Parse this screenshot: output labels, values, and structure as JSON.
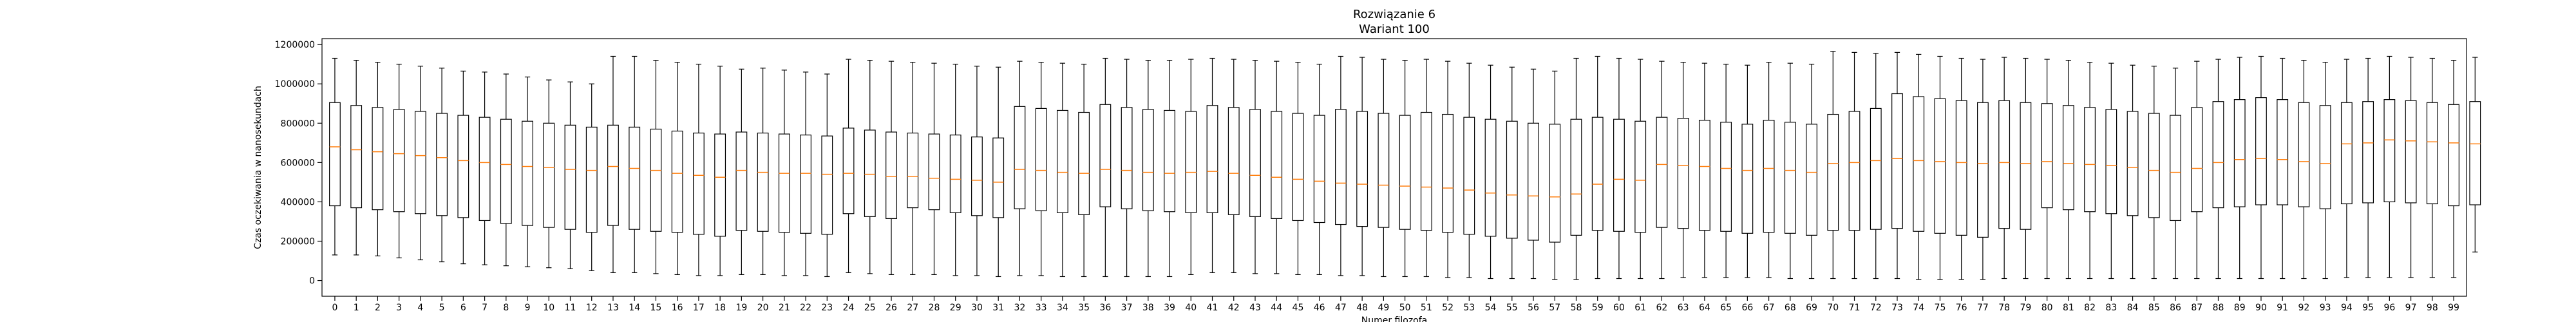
{
  "chart_data": {
    "type": "boxplot",
    "title": "Rozwiązanie 6",
    "subtitle": "Wariant 100",
    "xlabel": "Numer filozofa",
    "ylabel": "Czas oczekiwania w nanosekundach",
    "ylim": [
      -80000,
      1230000
    ],
    "yticks": [
      0,
      200000,
      400000,
      600000,
      800000,
      1000000,
      1200000
    ],
    "ytick_labels": [
      "0",
      "200000",
      "400000",
      "600000",
      "800000",
      "1000000",
      "1200000"
    ],
    "grid": false,
    "median_color": "#ff7f0e",
    "box_color": "#000000",
    "categories": [
      "0",
      "1",
      "2",
      "3",
      "4",
      "5",
      "6",
      "7",
      "8",
      "9",
      "10",
      "11",
      "12",
      "13",
      "14",
      "15",
      "16",
      "17",
      "18",
      "19",
      "20",
      "21",
      "22",
      "23",
      "24",
      "25",
      "26",
      "27",
      "28",
      "29",
      "30",
      "31",
      "32",
      "33",
      "34",
      "35",
      "36",
      "37",
      "38",
      "39",
      "40",
      "41",
      "42",
      "43",
      "44",
      "45",
      "46",
      "47",
      "48",
      "49",
      "50",
      "51",
      "52",
      "53",
      "54",
      "55",
      "56",
      "57",
      "58",
      "59",
      "60",
      "61",
      "62",
      "63",
      "64",
      "65",
      "66",
      "67",
      "68",
      "69",
      "70",
      "71",
      "72",
      "73",
      "74",
      "75",
      "76",
      "77",
      "78",
      "79",
      "80",
      "81",
      "82",
      "83",
      "84",
      "85",
      "86",
      "87",
      "88",
      "89",
      "90",
      "91",
      "92",
      "93",
      "94",
      "95",
      "96",
      "97",
      "98",
      "99"
    ],
    "boxes": [
      {
        "whislo": 130000,
        "q1": 380000,
        "med": 680000,
        "q3": 905000,
        "whishi": 1130000
      },
      {
        "whislo": 130000,
        "q1": 370000,
        "med": 665000,
        "q3": 890000,
        "whishi": 1120000
      },
      {
        "whislo": 125000,
        "q1": 360000,
        "med": 655000,
        "q3": 880000,
        "whishi": 1110000
      },
      {
        "whislo": 115000,
        "q1": 350000,
        "med": 645000,
        "q3": 870000,
        "whishi": 1100000
      },
      {
        "whislo": 105000,
        "q1": 340000,
        "med": 635000,
        "q3": 860000,
        "whishi": 1090000
      },
      {
        "whislo": 95000,
        "q1": 330000,
        "med": 625000,
        "q3": 850000,
        "whishi": 1080000
      },
      {
        "whislo": 85000,
        "q1": 320000,
        "med": 610000,
        "q3": 840000,
        "whishi": 1065000
      },
      {
        "whislo": 80000,
        "q1": 305000,
        "med": 600000,
        "q3": 830000,
        "whishi": 1060000
      },
      {
        "whislo": 75000,
        "q1": 290000,
        "med": 590000,
        "q3": 820000,
        "whishi": 1050000
      },
      {
        "whislo": 70000,
        "q1": 280000,
        "med": 580000,
        "q3": 810000,
        "whishi": 1035000
      },
      {
        "whislo": 65000,
        "q1": 270000,
        "med": 575000,
        "q3": 800000,
        "whishi": 1020000
      },
      {
        "whislo": 60000,
        "q1": 260000,
        "med": 565000,
        "q3": 790000,
        "whishi": 1010000
      },
      {
        "whislo": 50000,
        "q1": 245000,
        "med": 560000,
        "q3": 780000,
        "whishi": 1000000
      },
      {
        "whislo": 40000,
        "q1": 280000,
        "med": 580000,
        "q3": 790000,
        "whishi": 1140000
      },
      {
        "whislo": 40000,
        "q1": 260000,
        "med": 570000,
        "q3": 780000,
        "whishi": 1140000
      },
      {
        "whislo": 35000,
        "q1": 250000,
        "med": 560000,
        "q3": 770000,
        "whishi": 1120000
      },
      {
        "whislo": 30000,
        "q1": 245000,
        "med": 545000,
        "q3": 760000,
        "whishi": 1110000
      },
      {
        "whislo": 25000,
        "q1": 235000,
        "med": 535000,
        "q3": 750000,
        "whishi": 1100000
      },
      {
        "whislo": 25000,
        "q1": 225000,
        "med": 525000,
        "q3": 745000,
        "whishi": 1090000
      },
      {
        "whislo": 30000,
        "q1": 255000,
        "med": 560000,
        "q3": 755000,
        "whishi": 1075000
      },
      {
        "whislo": 30000,
        "q1": 250000,
        "med": 550000,
        "q3": 750000,
        "whishi": 1080000
      },
      {
        "whislo": 25000,
        "q1": 245000,
        "med": 545000,
        "q3": 745000,
        "whishi": 1070000
      },
      {
        "whislo": 25000,
        "q1": 240000,
        "med": 545000,
        "q3": 740000,
        "whishi": 1060000
      },
      {
        "whislo": 20000,
        "q1": 235000,
        "med": 540000,
        "q3": 735000,
        "whishi": 1050000
      },
      {
        "whislo": 40000,
        "q1": 340000,
        "med": 545000,
        "q3": 775000,
        "whishi": 1125000
      },
      {
        "whislo": 35000,
        "q1": 325000,
        "med": 540000,
        "q3": 765000,
        "whishi": 1120000
      },
      {
        "whislo": 30000,
        "q1": 315000,
        "med": 530000,
        "q3": 755000,
        "whishi": 1115000
      },
      {
        "whislo": 30000,
        "q1": 370000,
        "med": 530000,
        "q3": 750000,
        "whishi": 1110000
      },
      {
        "whislo": 30000,
        "q1": 360000,
        "med": 520000,
        "q3": 745000,
        "whishi": 1105000
      },
      {
        "whislo": 25000,
        "q1": 345000,
        "med": 515000,
        "q3": 740000,
        "whishi": 1100000
      },
      {
        "whislo": 25000,
        "q1": 330000,
        "med": 510000,
        "q3": 730000,
        "whishi": 1090000
      },
      {
        "whislo": 20000,
        "q1": 320000,
        "med": 500000,
        "q3": 725000,
        "whishi": 1085000
      },
      {
        "whislo": 25000,
        "q1": 365000,
        "med": 565000,
        "q3": 885000,
        "whishi": 1115000
      },
      {
        "whislo": 25000,
        "q1": 355000,
        "med": 560000,
        "q3": 875000,
        "whishi": 1110000
      },
      {
        "whislo": 20000,
        "q1": 345000,
        "med": 550000,
        "q3": 865000,
        "whishi": 1105000
      },
      {
        "whislo": 20000,
        "q1": 335000,
        "med": 545000,
        "q3": 855000,
        "whishi": 1100000
      },
      {
        "whislo": 20000,
        "q1": 375000,
        "med": 565000,
        "q3": 895000,
        "whishi": 1130000
      },
      {
        "whislo": 20000,
        "q1": 365000,
        "med": 560000,
        "q3": 880000,
        "whishi": 1125000
      },
      {
        "whislo": 20000,
        "q1": 355000,
        "med": 550000,
        "q3": 870000,
        "whishi": 1120000
      },
      {
        "whislo": 20000,
        "q1": 350000,
        "med": 545000,
        "q3": 865000,
        "whishi": 1120000
      },
      {
        "whislo": 30000,
        "q1": 345000,
        "med": 550000,
        "q3": 860000,
        "whishi": 1125000
      },
      {
        "whislo": 40000,
        "q1": 345000,
        "med": 555000,
        "q3": 890000,
        "whishi": 1130000
      },
      {
        "whislo": 40000,
        "q1": 335000,
        "med": 545000,
        "q3": 880000,
        "whishi": 1125000
      },
      {
        "whislo": 35000,
        "q1": 325000,
        "med": 535000,
        "q3": 870000,
        "whishi": 1120000
      },
      {
        "whislo": 35000,
        "q1": 315000,
        "med": 525000,
        "q3": 860000,
        "whishi": 1115000
      },
      {
        "whislo": 30000,
        "q1": 305000,
        "med": 515000,
        "q3": 850000,
        "whishi": 1110000
      },
      {
        "whislo": 30000,
        "q1": 295000,
        "med": 505000,
        "q3": 840000,
        "whishi": 1100000
      },
      {
        "whislo": 25000,
        "q1": 285000,
        "med": 495000,
        "q3": 870000,
        "whishi": 1140000
      },
      {
        "whislo": 25000,
        "q1": 275000,
        "med": 490000,
        "q3": 860000,
        "whishi": 1135000
      },
      {
        "whislo": 20000,
        "q1": 270000,
        "med": 485000,
        "q3": 850000,
        "whishi": 1125000
      },
      {
        "whislo": 20000,
        "q1": 260000,
        "med": 480000,
        "q3": 840000,
        "whishi": 1120000
      },
      {
        "whislo": 20000,
        "q1": 255000,
        "med": 475000,
        "q3": 855000,
        "whishi": 1125000
      },
      {
        "whislo": 15000,
        "q1": 245000,
        "med": 470000,
        "q3": 845000,
        "whishi": 1115000
      },
      {
        "whislo": 15000,
        "q1": 235000,
        "med": 460000,
        "q3": 830000,
        "whishi": 1105000
      },
      {
        "whislo": 10000,
        "q1": 225000,
        "med": 445000,
        "q3": 820000,
        "whishi": 1095000
      },
      {
        "whislo": 10000,
        "q1": 215000,
        "med": 435000,
        "q3": 810000,
        "whishi": 1085000
      },
      {
        "whislo": 10000,
        "q1": 205000,
        "med": 430000,
        "q3": 800000,
        "whishi": 1075000
      },
      {
        "whislo": 5000,
        "q1": 195000,
        "med": 425000,
        "q3": 795000,
        "whishi": 1065000
      },
      {
        "whislo": 5000,
        "q1": 230000,
        "med": 440000,
        "q3": 820000,
        "whishi": 1130000
      },
      {
        "whislo": 10000,
        "q1": 255000,
        "med": 490000,
        "q3": 830000,
        "whishi": 1140000
      },
      {
        "whislo": 10000,
        "q1": 250000,
        "med": 515000,
        "q3": 820000,
        "whishi": 1130000
      },
      {
        "whislo": 10000,
        "q1": 245000,
        "med": 510000,
        "q3": 810000,
        "whishi": 1125000
      },
      {
        "whislo": 10000,
        "q1": 270000,
        "med": 590000,
        "q3": 830000,
        "whishi": 1115000
      },
      {
        "whislo": 15000,
        "q1": 265000,
        "med": 585000,
        "q3": 825000,
        "whishi": 1110000
      },
      {
        "whislo": 15000,
        "q1": 255000,
        "med": 580000,
        "q3": 815000,
        "whishi": 1105000
      },
      {
        "whislo": 15000,
        "q1": 250000,
        "med": 570000,
        "q3": 805000,
        "whishi": 1100000
      },
      {
        "whislo": 15000,
        "q1": 240000,
        "med": 560000,
        "q3": 795000,
        "whishi": 1095000
      },
      {
        "whislo": 15000,
        "q1": 245000,
        "med": 570000,
        "q3": 815000,
        "whishi": 1110000
      },
      {
        "whislo": 10000,
        "q1": 240000,
        "med": 560000,
        "q3": 805000,
        "whishi": 1105000
      },
      {
        "whislo": 10000,
        "q1": 230000,
        "med": 550000,
        "q3": 795000,
        "whishi": 1100000
      },
      {
        "whislo": 10000,
        "q1": 255000,
        "med": 595000,
        "q3": 845000,
        "whishi": 1165000
      },
      {
        "whislo": 10000,
        "q1": 255000,
        "med": 600000,
        "q3": 860000,
        "whishi": 1160000
      },
      {
        "whislo": 10000,
        "q1": 260000,
        "med": 610000,
        "q3": 875000,
        "whishi": 1155000
      },
      {
        "whislo": 10000,
        "q1": 265000,
        "med": 620000,
        "q3": 950000,
        "whishi": 1160000
      },
      {
        "whislo": 5000,
        "q1": 250000,
        "med": 610000,
        "q3": 935000,
        "whishi": 1150000
      },
      {
        "whislo": 5000,
        "q1": 240000,
        "med": 605000,
        "q3": 925000,
        "whishi": 1140000
      },
      {
        "whislo": 5000,
        "q1": 230000,
        "med": 600000,
        "q3": 915000,
        "whishi": 1130000
      },
      {
        "whislo": 5000,
        "q1": 220000,
        "med": 595000,
        "q3": 905000,
        "whishi": 1125000
      },
      {
        "whislo": 10000,
        "q1": 265000,
        "med": 600000,
        "q3": 915000,
        "whishi": 1135000
      },
      {
        "whislo": 10000,
        "q1": 260000,
        "med": 595000,
        "q3": 905000,
        "whishi": 1130000
      },
      {
        "whislo": 10000,
        "q1": 370000,
        "med": 605000,
        "q3": 900000,
        "whishi": 1125000
      },
      {
        "whislo": 10000,
        "q1": 360000,
        "med": 595000,
        "q3": 890000,
        "whishi": 1120000
      },
      {
        "whislo": 10000,
        "q1": 350000,
        "med": 590000,
        "q3": 880000,
        "whishi": 1110000
      },
      {
        "whislo": 10000,
        "q1": 340000,
        "med": 585000,
        "q3": 870000,
        "whishi": 1105000
      },
      {
        "whislo": 10000,
        "q1": 330000,
        "med": 575000,
        "q3": 860000,
        "whishi": 1095000
      },
      {
        "whislo": 10000,
        "q1": 320000,
        "med": 560000,
        "q3": 850000,
        "whishi": 1090000
      },
      {
        "whislo": 10000,
        "q1": 305000,
        "med": 550000,
        "q3": 840000,
        "whishi": 1080000
      },
      {
        "whislo": 10000,
        "q1": 350000,
        "med": 570000,
        "q3": 880000,
        "whishi": 1115000
      },
      {
        "whislo": 10000,
        "q1": 370000,
        "med": 600000,
        "q3": 910000,
        "whishi": 1125000
      },
      {
        "whislo": 10000,
        "q1": 375000,
        "med": 615000,
        "q3": 920000,
        "whishi": 1135000
      },
      {
        "whislo": 10000,
        "q1": 385000,
        "med": 620000,
        "q3": 930000,
        "whishi": 1140000
      },
      {
        "whislo": 10000,
        "q1": 385000,
        "med": 615000,
        "q3": 920000,
        "whishi": 1130000
      },
      {
        "whislo": 10000,
        "q1": 375000,
        "med": 605000,
        "q3": 905000,
        "whishi": 1120000
      },
      {
        "whislo": 10000,
        "q1": 365000,
        "med": 595000,
        "q3": 890000,
        "whishi": 1110000
      },
      {
        "whislo": 15000,
        "q1": 390000,
        "med": 695000,
        "q3": 905000,
        "whishi": 1125000
      },
      {
        "whislo": 15000,
        "q1": 395000,
        "med": 700000,
        "q3": 910000,
        "whishi": 1130000
      },
      {
        "whislo": 15000,
        "q1": 400000,
        "med": 715000,
        "q3": 920000,
        "whishi": 1140000
      },
      {
        "whislo": 15000,
        "q1": 395000,
        "med": 710000,
        "q3": 915000,
        "whishi": 1135000
      },
      {
        "whislo": 15000,
        "q1": 390000,
        "med": 705000,
        "q3": 905000,
        "whishi": 1130000
      },
      {
        "whislo": 15000,
        "q1": 380000,
        "med": 700000,
        "q3": 895000,
        "whishi": 1120000
      },
      {
        "whislo": 145000,
        "q1": 385000,
        "med": 695000,
        "q3": 910000,
        "whishi": 1135000
      }
    ]
  }
}
